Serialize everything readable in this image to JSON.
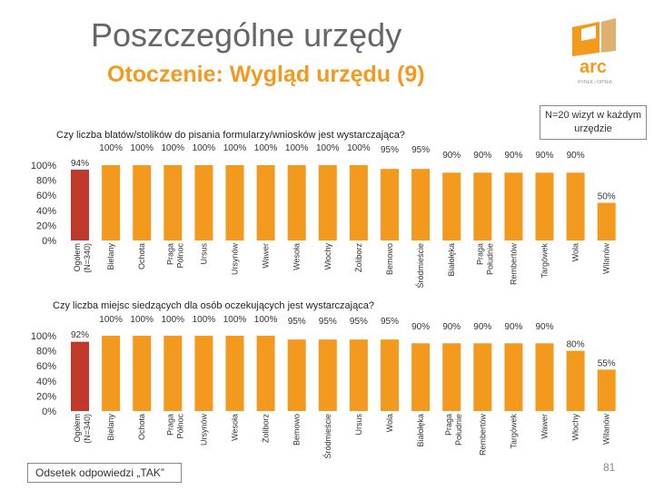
{
  "header": {
    "title": "Poszczególne urzędy",
    "subtitle": "Otoczenie: Wygląd urzędu (9)",
    "note": "N=20 wizyt w każdym urzędzie",
    "logo_text": "arc",
    "logo_tagline": "RYNEK i OPINIA"
  },
  "footer": {
    "legend_label": "Odsetek odpowiedzi „TAK”",
    "page_number": "81"
  },
  "colors": {
    "bar": "#f39a1e",
    "bar_highlight": "#c0392b",
    "title": "#666666",
    "subtitle": "#f39a1e"
  },
  "chart_data": [
    {
      "type": "bar",
      "title": "Czy liczba blatów/stolików do pisania formularzy/wniosków jest wystarczająca?",
      "ylim": [
        0,
        100
      ],
      "yticks": [
        "0%",
        "20%",
        "40%",
        "60%",
        "80%",
        "100%"
      ],
      "categories": [
        "Ogółem (N=340)",
        "Bielany",
        "Ochota",
        "Praga Północ",
        "Ursus",
        "Ursynów",
        "Wawer",
        "Wesoła",
        "Włochy",
        "Żoliborz",
        "Bemowo",
        "Śródmieście",
        "Białołęka",
        "Praga Południe",
        "Rembertów",
        "Targówek",
        "Wola",
        "Wilanów"
      ],
      "values": [
        94,
        100,
        100,
        100,
        100,
        100,
        100,
        100,
        100,
        100,
        95,
        95,
        90,
        90,
        90,
        90,
        90,
        50
      ],
      "labels": [
        "94%",
        "100%",
        "100%",
        "100%",
        "100%",
        "100%",
        "100%",
        "100%",
        "100%",
        "100%",
        "95%",
        "95%",
        "90%",
        "90%",
        "90%",
        "90%",
        "90%",
        "50%"
      ]
    },
    {
      "type": "bar",
      "title": "Czy liczba miejsc siedzących dla osób oczekujących jest wystarczająca?",
      "ylim": [
        0,
        100
      ],
      "yticks": [
        "0%",
        "20%",
        "40%",
        "60%",
        "80%",
        "100%"
      ],
      "categories": [
        "Ogółem (N=340)",
        "Bielany",
        "Ochota",
        "Praga Północ",
        "Ursynów",
        "Wesoła",
        "Żoliborz",
        "Bemowo",
        "Śródmieście",
        "Ursus",
        "Wola",
        "Białołęka",
        "Praga Południe",
        "Rembertów",
        "Targówek",
        "Wawer",
        "Włochy",
        "Wilanów"
      ],
      "values": [
        92,
        100,
        100,
        100,
        100,
        100,
        100,
        95,
        95,
        95,
        95,
        90,
        90,
        90,
        90,
        90,
        80,
        55
      ],
      "labels": [
        "92%",
        "100%",
        "100%",
        "100%",
        "100%",
        "100%",
        "100%",
        "95%",
        "95%",
        "95%",
        "95%",
        "90%",
        "90%",
        "90%",
        "90%",
        "90%",
        "80%",
        "55%"
      ]
    }
  ]
}
